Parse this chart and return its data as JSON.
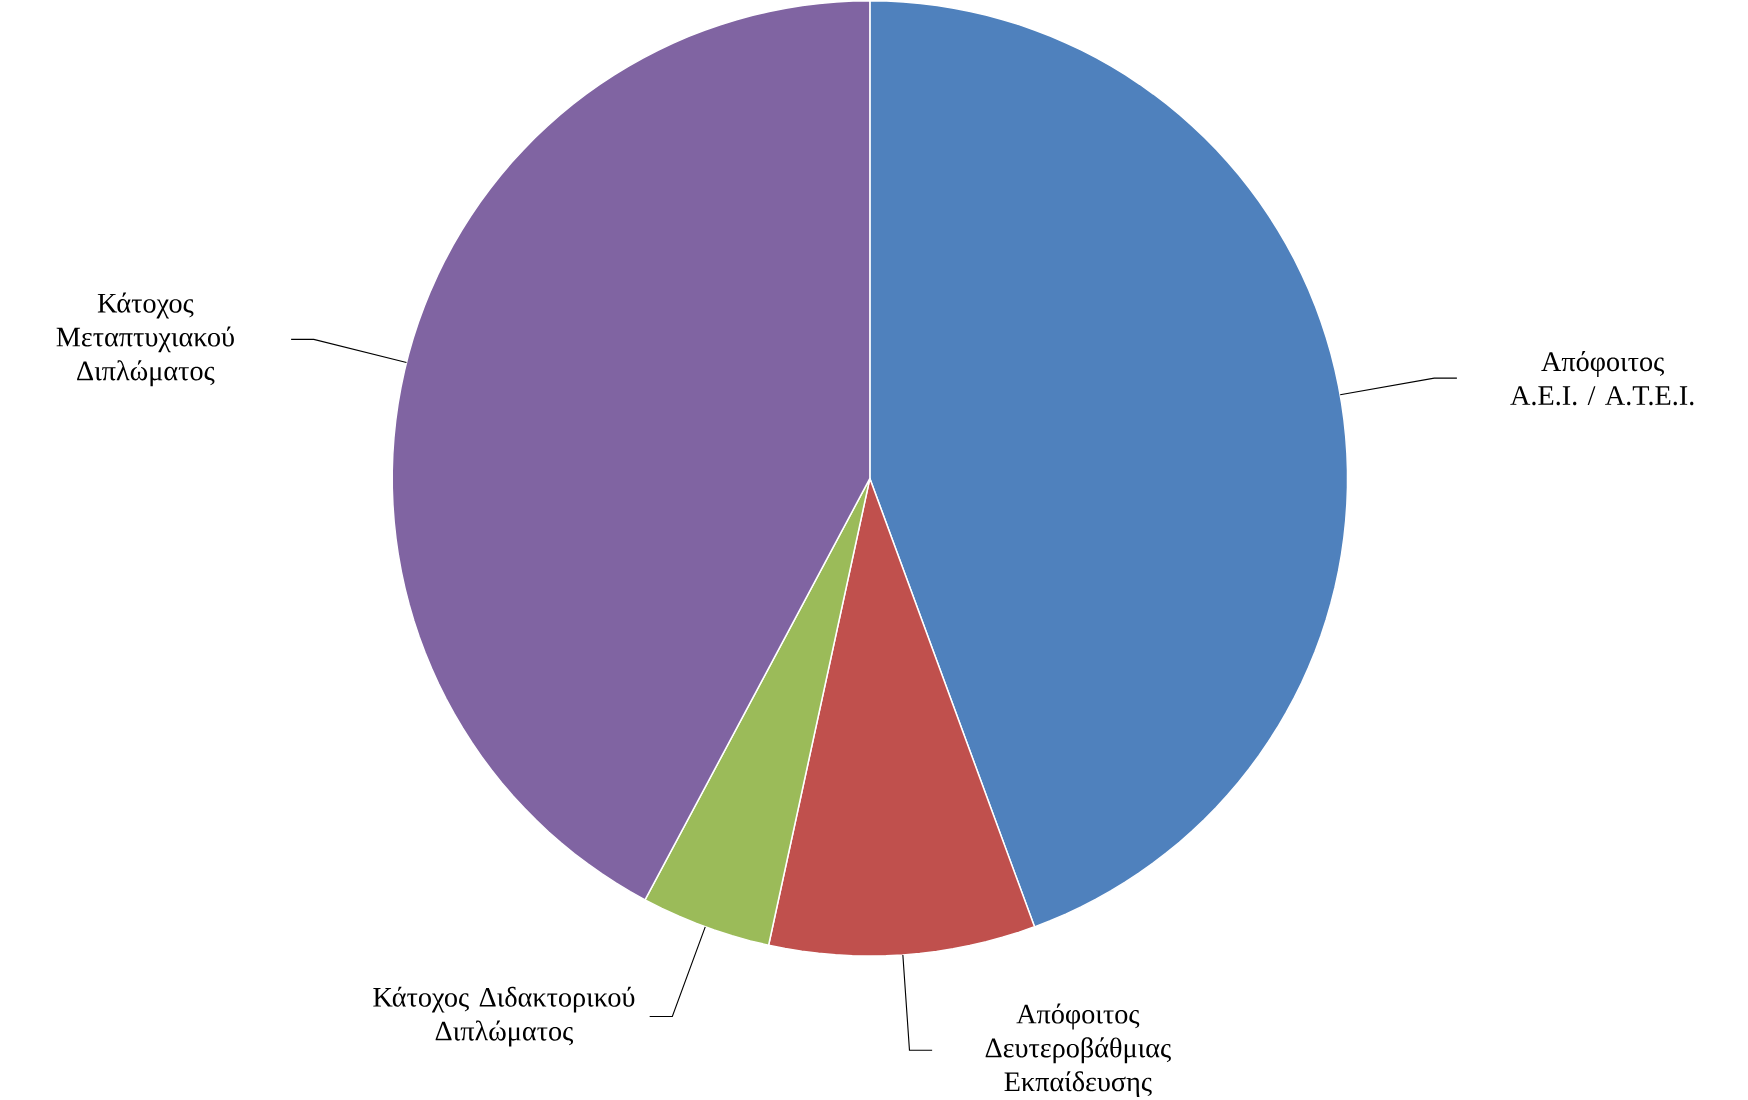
{
  "chart_data": {
    "type": "pie",
    "categories": [
      "Απόφοιτος Α.Ε.Ι. / Α.Τ.Ε.Ι.",
      "Απόφοιτος Δευτεροβάθμιας Εκπαίδευσης",
      "Κάτοχος Διδακτορικού Διπλώματος",
      "Κάτοχος Μεταπτυχιακού Διπλώματος"
    ],
    "values": [
      44.4,
      9.0,
      4.4,
      42.2
    ],
    "colors": [
      "#4f81bd",
      "#c0504d",
      "#9bbb59",
      "#8064a2"
    ]
  }
}
